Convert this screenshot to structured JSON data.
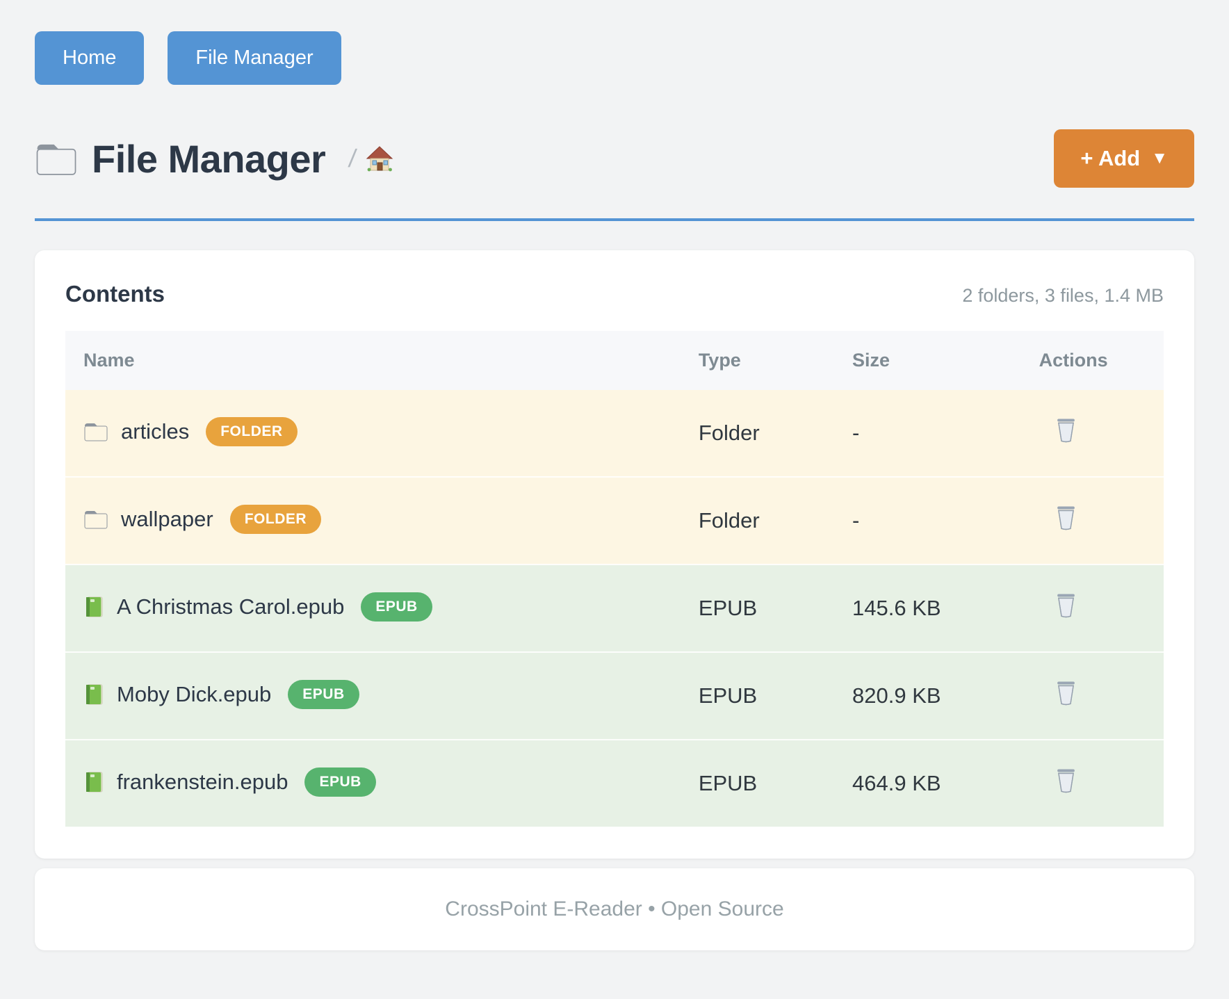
{
  "nav": {
    "home_label": "Home",
    "file_manager_label": "File Manager"
  },
  "header": {
    "title": "File Manager",
    "title_icon": "folder-icon",
    "breadcrumb_separator": "/",
    "breadcrumb_home_icon": "home-icon",
    "add_button": {
      "label": "+ Add",
      "caret": "▼"
    }
  },
  "contents": {
    "heading": "Contents",
    "summary": "2 folders, 3 files, 1.4 MB",
    "columns": [
      "Name",
      "Type",
      "Size",
      "Actions"
    ],
    "rows": [
      {
        "name": "articles",
        "badge": "FOLDER",
        "type": "Folder",
        "size": "-",
        "kind": "folder",
        "icon": "folder-icon",
        "action_icon": "trash-icon"
      },
      {
        "name": "wallpaper",
        "badge": "FOLDER",
        "type": "Folder",
        "size": "-",
        "kind": "folder",
        "icon": "folder-icon",
        "action_icon": "trash-icon"
      },
      {
        "name": "A Christmas Carol.epub",
        "badge": "EPUB",
        "type": "EPUB",
        "size": "145.6 KB",
        "kind": "epub",
        "icon": "book-icon",
        "action_icon": "trash-icon"
      },
      {
        "name": "Moby Dick.epub",
        "badge": "EPUB",
        "type": "EPUB",
        "size": "820.9 KB",
        "kind": "epub",
        "icon": "book-icon",
        "action_icon": "trash-icon"
      },
      {
        "name": "frankenstein.epub",
        "badge": "EPUB",
        "type": "EPUB",
        "size": "464.9 KB",
        "kind": "epub",
        "icon": "book-icon",
        "action_icon": "trash-icon"
      }
    ]
  },
  "footer": {
    "text": "CrossPoint E-Reader • Open Source"
  },
  "colors": {
    "page_background": "#f2f3f4",
    "accent_blue": "#5494d4",
    "accent_orange": "#dd8536",
    "badge_folder": "#e8a33d",
    "badge_epub": "#57b36e",
    "row_folder_bg": "#fdf6e3",
    "row_epub_bg": "#e7f1e5",
    "muted_text": "#8d989e",
    "heading_text": "#2d3847"
  }
}
